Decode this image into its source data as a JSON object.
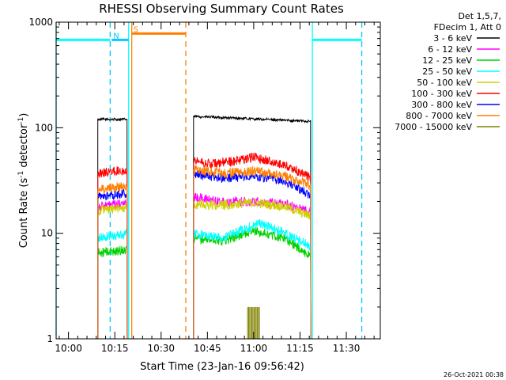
{
  "chart_data": {
    "type": "line",
    "title": "RHESSI Observing Summary Count Rates",
    "xlabel": "Start Time (23-Jan-16 09:56:42)",
    "ylabel_main": "Count Rate (s",
    "ylabel_sup1": "-1",
    "ylabel_mid": " detector",
    "ylabel_sup2": "-1",
    "ylabel_end": ")",
    "yscale": "log",
    "xlim_min": [
      -4,
      101
    ],
    "ylim": [
      1,
      1000
    ],
    "x_ticks": [
      {
        "value": 0,
        "label": "10:00"
      },
      {
        "value": 15,
        "label": "10:15"
      },
      {
        "value": 30,
        "label": "10:30"
      },
      {
        "value": 45,
        "label": "10:45"
      },
      {
        "value": 60,
        "label": "11:00"
      },
      {
        "value": 75,
        "label": "11:15"
      },
      {
        "value": 90,
        "label": "11:30"
      }
    ],
    "y_ticks": [
      {
        "value": 1,
        "label": "1"
      },
      {
        "value": 10,
        "label": "10"
      },
      {
        "value": 100,
        "label": "100"
      },
      {
        "value": 1000,
        "label": "1000"
      }
    ],
    "legend": {
      "placement": "right",
      "header1": "Det 1,5,7,",
      "header2": "FDecim 1, Att 0",
      "items": [
        {
          "label": "3 - 6 keV",
          "color": "#000000"
        },
        {
          "label": "6 - 12 keV",
          "color": "#ff00ff"
        },
        {
          "label": "12 - 25 keV",
          "color": "#00d000"
        },
        {
          "label": "25 - 50 keV",
          "color": "#00ffff"
        },
        {
          "label": "50 - 100 keV",
          "color": "#d0d000"
        },
        {
          "label": "100 - 300 keV",
          "color": "#ff0000"
        },
        {
          "label": "300 - 800 keV",
          "color": "#0000ff"
        },
        {
          "label": "800 - 7000 keV",
          "color": "#ff8000"
        },
        {
          "label": "7000 - 15000 keV",
          "color": "#808000"
        }
      ]
    },
    "series": [
      {
        "name": "3 - 6 keV",
        "color": "#000000",
        "x": [
          9.5,
          19,
          40.5,
          78.5
        ],
        "y": [
          120,
          120,
          128,
          115
        ]
      },
      {
        "name": "6 - 12 keV",
        "color": "#ff00ff",
        "x": [
          9.5,
          19,
          40.5,
          50,
          60,
          70,
          78.5
        ],
        "y": [
          18,
          19,
          22,
          20,
          20,
          19,
          16
        ]
      },
      {
        "name": "12 - 25 keV",
        "color": "#00d000",
        "x": [
          9.5,
          19,
          40.5,
          50,
          60,
          70,
          78.5
        ],
        "y": [
          6.5,
          7,
          9,
          8.5,
          10.5,
          9,
          6
        ]
      },
      {
        "name": "25 - 50 keV",
        "color": "#00ffff",
        "x": [
          9.5,
          19,
          40.5,
          50,
          57,
          62,
          70,
          78.5
        ],
        "y": [
          9,
          10,
          10,
          9,
          11,
          12.5,
          10,
          7.5
        ]
      },
      {
        "name": "50 - 100 keV",
        "color": "#d0d000",
        "x": [
          9.5,
          19,
          40.5,
          50,
          60,
          70,
          78.5
        ],
        "y": [
          16.5,
          17.5,
          18.5,
          18.5,
          19.5,
          18,
          14.5
        ]
      },
      {
        "name": "100 - 300 keV",
        "color": "#ff0000",
        "x": [
          9.5,
          19,
          40.5,
          46,
          53,
          60,
          70,
          78.5
        ],
        "y": [
          37,
          40,
          50,
          45,
          48,
          53,
          44,
          34
        ]
      },
      {
        "name": "300 - 800 keV",
        "color": "#0000ff",
        "x": [
          9.5,
          19,
          40.5,
          50,
          60,
          70,
          78.5
        ],
        "y": [
          22,
          24,
          36,
          33,
          35,
          31,
          23
        ]
      },
      {
        "name": "800 - 7000 keV",
        "color": "#ff8000",
        "x": [
          9.5,
          19,
          40.5,
          50,
          60,
          70,
          78.5
        ],
        "y": [
          26,
          28,
          40,
          37,
          39,
          35,
          28
        ]
      },
      {
        "name": "7000 - 15000 keV",
        "color": "#808000",
        "x": [
          58,
          62
        ],
        "y": [
          2,
          2
        ]
      }
    ],
    "flags": [
      {
        "label": "N",
        "color": "#00ccff",
        "start": 14,
        "end": 19.5,
        "level": 680
      },
      {
        "label": "S",
        "color": "#ff8000",
        "start": 20.5,
        "end": 38,
        "level": 780
      },
      {
        "label": "",
        "color": "#00ffff",
        "start": -4,
        "end": 13.5,
        "level": 680
      },
      {
        "label": "",
        "color": "#00ffff",
        "start": 79,
        "end": 95,
        "level": 680
      }
    ],
    "vertical_markers": [
      {
        "x": -4,
        "color": "#00ffff",
        "style": "solid"
      },
      {
        "x": 13.5,
        "color": "#00ccff",
        "style": "dashed"
      },
      {
        "x": 19.5,
        "color": "#00ffff",
        "style": "solid"
      },
      {
        "x": 20.5,
        "color": "#ff8000",
        "style": "solid"
      },
      {
        "x": 38,
        "color": "#ff8000",
        "style": "dashed"
      },
      {
        "x": 79,
        "color": "#00ffff",
        "style": "solid"
      },
      {
        "x": 95,
        "color": "#00ccff",
        "style": "dashed"
      }
    ],
    "footer_date": "26-Oct-2021 00:38"
  }
}
